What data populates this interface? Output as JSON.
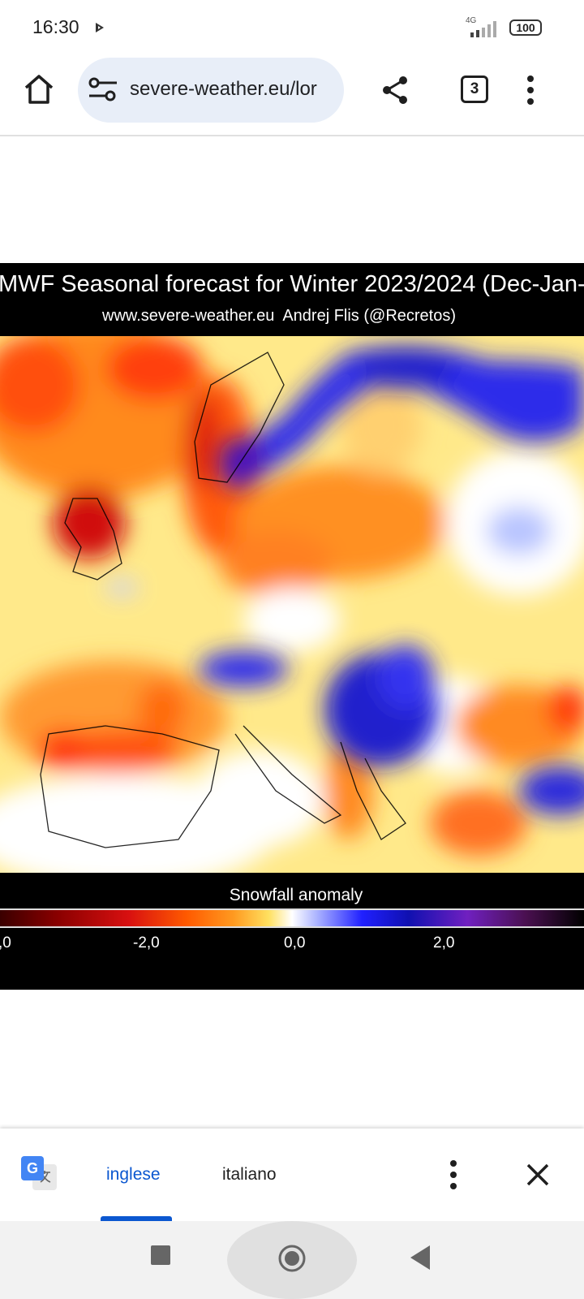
{
  "status_bar": {
    "time": "16:30",
    "network": "4G",
    "battery": "100"
  },
  "toolbar": {
    "url": "severe-weather.eu/lor",
    "tab_count": "3"
  },
  "map_image": {
    "title": "MWF Seasonal forecast for Winter 2023/2024 (Dec-Jan-",
    "subtitle": "www.severe-weather.eu  Andrej Flis (@Recretos)",
    "legend_title": "Snowfall anomaly",
    "legend_ticks": [
      ",0",
      "-2,0",
      "0,0",
      "2,0"
    ]
  },
  "translate_bar": {
    "languages": [
      "inglese",
      "italiano"
    ]
  }
}
